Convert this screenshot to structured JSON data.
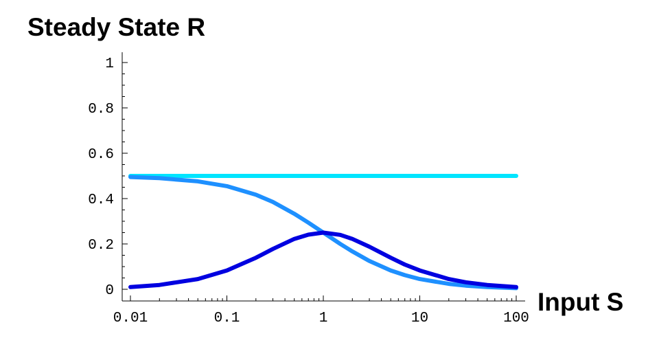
{
  "chart_data": {
    "type": "line",
    "title": "Steady State R",
    "xlabel": "Input S",
    "ylabel": "",
    "x_scale": "log",
    "xlim": [
      0.01,
      100
    ],
    "ylim": [
      0,
      1
    ],
    "grid": false,
    "x_ticks": [
      {
        "value": 0.01,
        "label": "0.01"
      },
      {
        "value": 0.1,
        "label": "0.1"
      },
      {
        "value": 1,
        "label": "1"
      },
      {
        "value": 10,
        "label": "10"
      },
      {
        "value": 100,
        "label": "100"
      }
    ],
    "y_ticks": [
      {
        "value": 0,
        "label": "0"
      },
      {
        "value": 0.2,
        "label": "0.2"
      },
      {
        "value": 0.4,
        "label": "0.4"
      },
      {
        "value": 0.6,
        "label": "0.6"
      },
      {
        "value": 0.8,
        "label": "0.8"
      },
      {
        "value": 1,
        "label": "1"
      }
    ],
    "series": [
      {
        "color": "#00e5ff",
        "x": [
          0.01,
          0.1,
          1,
          10,
          100
        ],
        "y": [
          0.5,
          0.5,
          0.5,
          0.5,
          0.5
        ]
      },
      {
        "color": "#1e90ff",
        "x": [
          0.01,
          0.02,
          0.05,
          0.1,
          0.2,
          0.3,
          0.5,
          0.7,
          1,
          1.5,
          2,
          3,
          5,
          7,
          10,
          20,
          30,
          50,
          100
        ],
        "y": [
          0.495,
          0.49,
          0.476,
          0.455,
          0.417,
          0.385,
          0.333,
          0.294,
          0.25,
          0.2,
          0.167,
          0.125,
          0.083,
          0.0625,
          0.045,
          0.024,
          0.016,
          0.0098,
          0.005
        ]
      },
      {
        "color": "#0000e0",
        "x": [
          0.01,
          0.02,
          0.05,
          0.1,
          0.2,
          0.3,
          0.5,
          0.7,
          1,
          1.5,
          2,
          3,
          5,
          7,
          10,
          20,
          30,
          50,
          100
        ],
        "y": [
          0.0098,
          0.019,
          0.045,
          0.083,
          0.139,
          0.178,
          0.222,
          0.241,
          0.25,
          0.24,
          0.222,
          0.188,
          0.139,
          0.109,
          0.083,
          0.045,
          0.031,
          0.019,
          0.0098
        ]
      }
    ]
  }
}
